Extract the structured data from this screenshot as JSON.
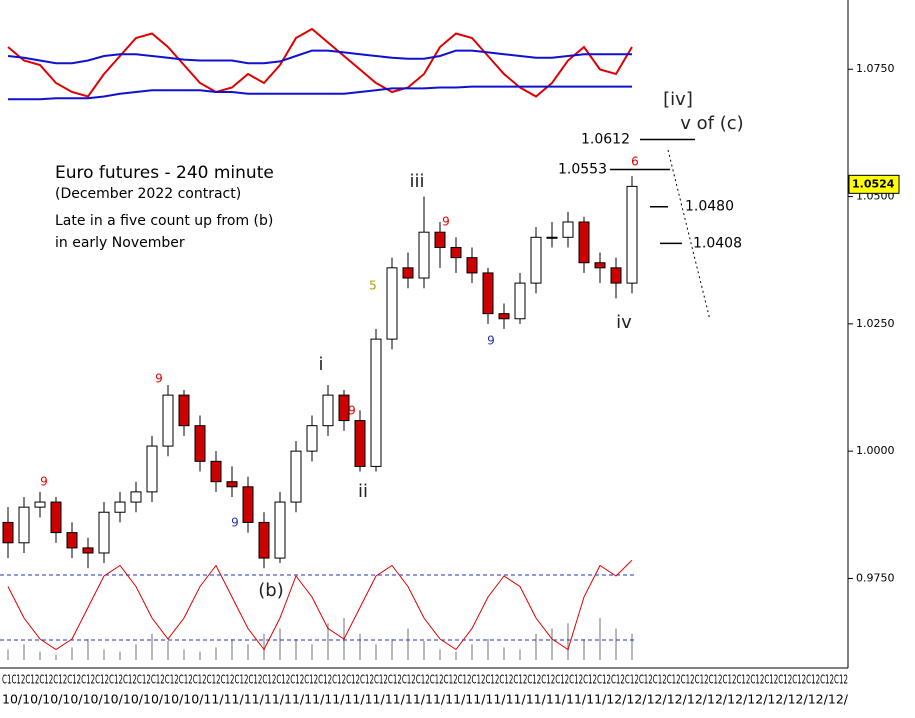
{
  "chart_data": {
    "type": "candlestick",
    "title": "Euro futures - 240 minute",
    "subtitle": "(December 2022 contract)",
    "notes": [
      "Late in a five count up from (b)",
      "in early November"
    ],
    "x_axis_rows": [
      "C1C12C12C12C12C12C12C12C12C12C12C12C12C12C12C12C12C12C12C12C12C12C12C12C12C12C12C12C12C12C12C12C12C12C12C12C12C12C12C12C12C12C12C12C12C12C12C12C12C12C12C12C12C12C12C12C12C12C12C12C12",
      "10/10/10/10/10/10/10/10/10/10/11/11/11/11/11/11/11/11/11/11/11/11/11/11/11/11/11/11/11/11/12/12/12/12/12/12/12/12/12/12/12/12/"
    ],
    "open": [
      0.986,
      0.982,
      0.989,
      0.99,
      0.984,
      0.981,
      0.98,
      0.988,
      0.99,
      0.992,
      1.001,
      1.011,
      1.005,
      0.998,
      0.994,
      0.993,
      0.986,
      0.979,
      0.99,
      1.0,
      1.005,
      1.011,
      1.006,
      0.997,
      1.022,
      1.036,
      1.034,
      1.043,
      1.04,
      1.038,
      1.035,
      1.027,
      1.026,
      1.033,
      1.042,
      1.042,
      1.045,
      1.037,
      1.036,
      1.033
    ],
    "high": [
      0.989,
      0.991,
      0.992,
      0.991,
      0.986,
      0.983,
      0.99,
      0.992,
      0.994,
      1.003,
      1.013,
      1.012,
      1.007,
      1.0,
      0.997,
      0.995,
      0.988,
      0.992,
      1.002,
      1.007,
      1.013,
      1.012,
      1.008,
      1.024,
      1.038,
      1.039,
      1.05,
      1.045,
      1.042,
      1.04,
      1.036,
      1.029,
      1.035,
      1.044,
      1.045,
      1.047,
      1.046,
      1.039,
      1.038,
      1.054
    ],
    "low": [
      0.979,
      0.98,
      0.987,
      0.982,
      0.979,
      0.977,
      0.978,
      0.986,
      0.988,
      0.99,
      0.999,
      1.003,
      0.996,
      0.992,
      0.991,
      0.984,
      0.977,
      0.978,
      0.988,
      0.998,
      1.003,
      1.004,
      0.996,
      0.996,
      1.02,
      1.032,
      1.032,
      1.036,
      1.035,
      1.033,
      1.025,
      1.024,
      1.025,
      1.031,
      1.04,
      1.04,
      1.035,
      1.033,
      1.03,
      1.031
    ],
    "close": [
      0.982,
      0.989,
      0.99,
      0.984,
      0.981,
      0.98,
      0.988,
      0.99,
      0.992,
      1.001,
      1.011,
      1.005,
      0.998,
      0.994,
      0.993,
      0.986,
      0.979,
      0.99,
      1.0,
      1.005,
      1.011,
      1.006,
      0.997,
      1.022,
      1.036,
      1.034,
      1.043,
      1.04,
      1.038,
      1.035,
      1.027,
      1.026,
      1.033,
      1.042,
      1.042,
      1.045,
      1.037,
      1.036,
      1.033,
      1.052
    ],
    "up_color": "#ffffff",
    "down_color": "#cc0000",
    "ylim": [
      0.958,
      1.0886
    ],
    "yticks": [
      {
        "value": 1.075,
        "label": "1.0750"
      },
      {
        "value": 1.05,
        "label": "1.0500"
      },
      {
        "value": 1.025,
        "label": "1.0250"
      },
      {
        "value": 1.0,
        "label": "1.0000"
      },
      {
        "value": 0.975,
        "label": "0.9750"
      }
    ],
    "current_price": 1.0524,
    "levels": [
      1.0612,
      1.0553,
      {
        "value": 1.048,
        "label": "1.0480"
      },
      {
        "value": 1.0408,
        "label": "1.0408"
      }
    ],
    "annotations": [
      {
        "text": "i",
        "color": "#222222"
      },
      {
        "text": "ii",
        "color": "#222222"
      },
      {
        "text": "iii",
        "color": "#222222"
      },
      {
        "text": "iv",
        "color": "#222222"
      },
      {
        "text": "(b)",
        "color": "#222222"
      },
      {
        "text": "[iv]",
        "color": "#222222"
      },
      {
        "text": "v of (c)",
        "color": "#222222"
      },
      {
        "text": "9",
        "color": "#e00000"
      },
      {
        "text": "9",
        "color": "#e00000"
      },
      {
        "text": "9",
        "color": "#2030c0"
      },
      {
        "text": "9",
        "color": "#e00000"
      },
      {
        "text": "9",
        "color": "#e00000"
      },
      {
        "text": "9",
        "color": "#2030c0"
      },
      {
        "text": "6",
        "color": "#e00000"
      },
      {
        "text": "5",
        "color": "#b0a000"
      }
    ],
    "top_panel": {
      "ylim": [
        0,
        100
      ],
      "series": [
        {
          "color": "#e00000",
          "values": [
            70,
            55,
            50,
            30,
            20,
            15,
            40,
            60,
            80,
            85,
            70,
            50,
            30,
            20,
            25,
            40,
            30,
            50,
            80,
            90,
            75,
            60,
            45,
            30,
            20,
            25,
            40,
            70,
            85,
            80,
            60,
            40,
            25,
            15,
            30,
            55,
            70,
            45,
            40,
            70
          ]
        },
        {
          "color": "#1010d0",
          "values": [
            60,
            58,
            55,
            52,
            52,
            55,
            60,
            62,
            62,
            60,
            58,
            56,
            55,
            55,
            55,
            52,
            52,
            54,
            60,
            66,
            66,
            64,
            62,
            60,
            58,
            57,
            57,
            60,
            66,
            66,
            64,
            62,
            60,
            58,
            58,
            60,
            62,
            62,
            62,
            62
          ]
        },
        {
          "color": "#1010d0",
          "values": [
            12,
            12,
            12,
            13,
            13,
            13,
            15,
            18,
            20,
            22,
            22,
            22,
            22,
            20,
            20,
            18,
            18,
            18,
            18,
            18,
            18,
            18,
            20,
            22,
            24,
            24,
            24,
            25,
            25,
            26,
            26,
            26,
            26,
            26,
            26,
            26,
            26,
            26,
            26,
            26
          ]
        }
      ]
    },
    "bottom_panel": {
      "ylim": [
        0,
        100
      ],
      "thresholds": [
        81,
        19
      ],
      "threshold_color": "#2030c0",
      "line": {
        "color": "#e00000",
        "values": [
          70,
          40,
          20,
          10,
          20,
          50,
          80,
          90,
          70,
          40,
          20,
          40,
          70,
          90,
          60,
          30,
          10,
          40,
          80,
          60,
          30,
          20,
          50,
          80,
          90,
          70,
          40,
          20,
          10,
          30,
          60,
          80,
          70,
          40,
          20,
          10,
          60,
          90,
          80,
          95
        ]
      },
      "bars": {
        "color": "#b8b8b8",
        "values": [
          10,
          15,
          8,
          5,
          12,
          20,
          10,
          8,
          15,
          25,
          18,
          10,
          8,
          12,
          20,
          15,
          25,
          30,
          20,
          15,
          35,
          40,
          25,
          15,
          20,
          30,
          18,
          10,
          8,
          15,
          20,
          12,
          10,
          25,
          30,
          35,
          20,
          40,
          30,
          25
        ]
      }
    }
  }
}
